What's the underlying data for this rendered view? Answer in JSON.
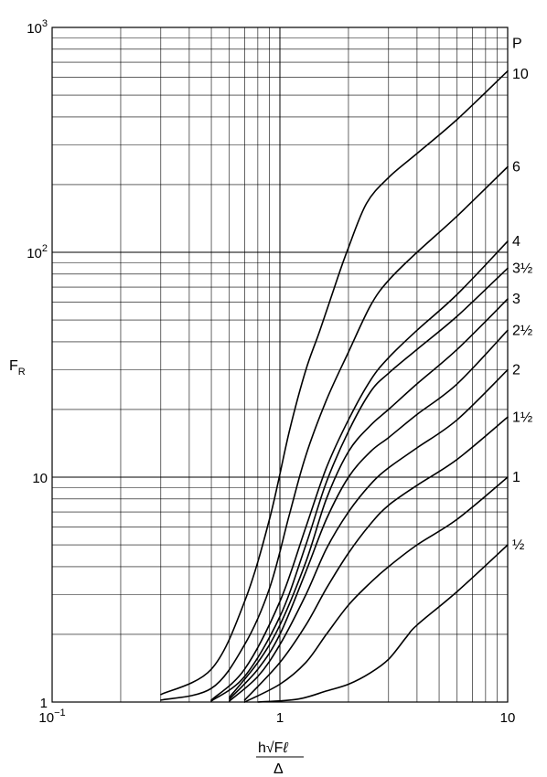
{
  "chart_data": {
    "type": "line",
    "x_scale": "log",
    "y_scale": "log",
    "xlim": [
      0.1,
      10
    ],
    "ylim": [
      1,
      1000
    ],
    "grid": true,
    "ylabel": "F",
    "ylabel_sub": "R",
    "xlabel_numerator": "h√F",
    "xlabel_numerator_sub": "ℓ",
    "xlabel_denominator": "Δ",
    "x_ticks": [
      {
        "value": 0.1,
        "label": "10",
        "sup": "−1"
      },
      {
        "value": 1,
        "label": "1",
        "sup": ""
      },
      {
        "value": 10,
        "label": "10",
        "sup": ""
      }
    ],
    "y_ticks": [
      {
        "value": 1,
        "label": "1",
        "sup": ""
      },
      {
        "value": 10,
        "label": "10",
        "sup": ""
      },
      {
        "value": 100,
        "label": "10",
        "sup": "2"
      },
      {
        "value": 1000,
        "label": "10",
        "sup": "3"
      }
    ],
    "series": [
      {
        "name": "P",
        "label_y": 850,
        "points": []
      },
      {
        "name": "10",
        "label_y": 620,
        "points": [
          [
            0.3,
            1.08
          ],
          [
            0.5,
            1.4
          ],
          [
            0.7,
            2.8
          ],
          [
            0.9,
            6.5
          ],
          [
            1.1,
            16
          ],
          [
            1.3,
            30
          ],
          [
            1.5,
            45
          ],
          [
            1.8,
            78
          ],
          [
            2.0,
            105
          ],
          [
            2.4,
            165
          ],
          [
            3.0,
            215
          ],
          [
            4.0,
            275
          ],
          [
            6.0,
            390
          ],
          [
            10,
            640
          ]
        ]
      },
      {
        "name": "6",
        "label_y": 240,
        "points": [
          [
            0.3,
            1.02
          ],
          [
            0.5,
            1.15
          ],
          [
            0.7,
            1.8
          ],
          [
            0.9,
            3.2
          ],
          [
            1.1,
            6.8
          ],
          [
            1.3,
            12.5
          ],
          [
            1.6,
            22
          ],
          [
            2.0,
            36
          ],
          [
            2.5,
            58
          ],
          [
            3.0,
            75
          ],
          [
            4.0,
            100
          ],
          [
            6.0,
            145
          ],
          [
            10,
            240
          ]
        ]
      },
      {
        "name": "4",
        "label_y": 112,
        "points": [
          [
            0.5,
            1.02
          ],
          [
            0.7,
            1.4
          ],
          [
            1.0,
            2.8
          ],
          [
            1.3,
            6
          ],
          [
            1.6,
            11
          ],
          [
            2.0,
            18
          ],
          [
            2.5,
            27
          ],
          [
            3.0,
            34
          ],
          [
            4.0,
            45
          ],
          [
            6.0,
            65
          ],
          [
            10,
            112
          ]
        ]
      },
      {
        "name": "3½",
        "label_y": 85,
        "points": [
          [
            0.5,
            1.01
          ],
          [
            0.7,
            1.3
          ],
          [
            1.0,
            2.4
          ],
          [
            1.3,
            5
          ],
          [
            1.6,
            9.5
          ],
          [
            2.0,
            16
          ],
          [
            2.5,
            24
          ],
          [
            3.0,
            29
          ],
          [
            4.0,
            37
          ],
          [
            6.0,
            52
          ],
          [
            10,
            85
          ]
        ]
      },
      {
        "name": "3",
        "label_y": 62,
        "points": [
          [
            0.6,
            1.05
          ],
          [
            0.8,
            1.5
          ],
          [
            1.0,
            2.2
          ],
          [
            1.3,
            4.2
          ],
          [
            1.6,
            8
          ],
          [
            2.0,
            13
          ],
          [
            2.5,
            17
          ],
          [
            3.0,
            20
          ],
          [
            4.0,
            26
          ],
          [
            6.0,
            37
          ],
          [
            10,
            62
          ]
        ]
      },
      {
        "name": "2½",
        "label_y": 45,
        "points": [
          [
            0.6,
            1.03
          ],
          [
            0.8,
            1.4
          ],
          [
            1.0,
            2
          ],
          [
            1.3,
            3.8
          ],
          [
            1.6,
            6.5
          ],
          [
            2.0,
            10
          ],
          [
            2.5,
            13
          ],
          [
            3.0,
            15
          ],
          [
            4.0,
            19
          ],
          [
            6.0,
            26
          ],
          [
            10,
            45
          ]
        ]
      },
      {
        "name": "2",
        "label_y": 30,
        "points": [
          [
            0.6,
            1.01
          ],
          [
            0.8,
            1.3
          ],
          [
            1.0,
            1.8
          ],
          [
            1.3,
            3
          ],
          [
            1.6,
            4.8
          ],
          [
            2.0,
            7
          ],
          [
            2.5,
            9.3
          ],
          [
            3.0,
            11
          ],
          [
            4.0,
            13.5
          ],
          [
            6.0,
            18
          ],
          [
            10,
            30
          ]
        ]
      },
      {
        "name": "1½",
        "label_y": 18.5,
        "points": [
          [
            0.7,
            1.02
          ],
          [
            1.0,
            1.5
          ],
          [
            1.3,
            2.2
          ],
          [
            1.6,
            3.2
          ],
          [
            2.0,
            4.6
          ],
          [
            2.5,
            6.2
          ],
          [
            3.0,
            7.5
          ],
          [
            4.0,
            9.2
          ],
          [
            6.0,
            12
          ],
          [
            10,
            18.5
          ]
        ]
      },
      {
        "name": "1",
        "label_y": 10,
        "points": [
          [
            0.7,
            1.0
          ],
          [
            1.0,
            1.2
          ],
          [
            1.3,
            1.5
          ],
          [
            1.6,
            2
          ],
          [
            2.0,
            2.7
          ],
          [
            2.5,
            3.4
          ],
          [
            3.0,
            4
          ],
          [
            4.0,
            5
          ],
          [
            6.0,
            6.5
          ],
          [
            10,
            10
          ]
        ]
      },
      {
        "name": "½",
        "label_y": 5,
        "points": [
          [
            0.8,
            1.0
          ],
          [
            1.2,
            1.03
          ],
          [
            1.6,
            1.12
          ],
          [
            2.0,
            1.2
          ],
          [
            2.5,
            1.35
          ],
          [
            3.0,
            1.55
          ],
          [
            3.6,
            1.95
          ],
          [
            4.0,
            2.2
          ],
          [
            6.0,
            3.1
          ],
          [
            10,
            5
          ]
        ]
      }
    ]
  }
}
